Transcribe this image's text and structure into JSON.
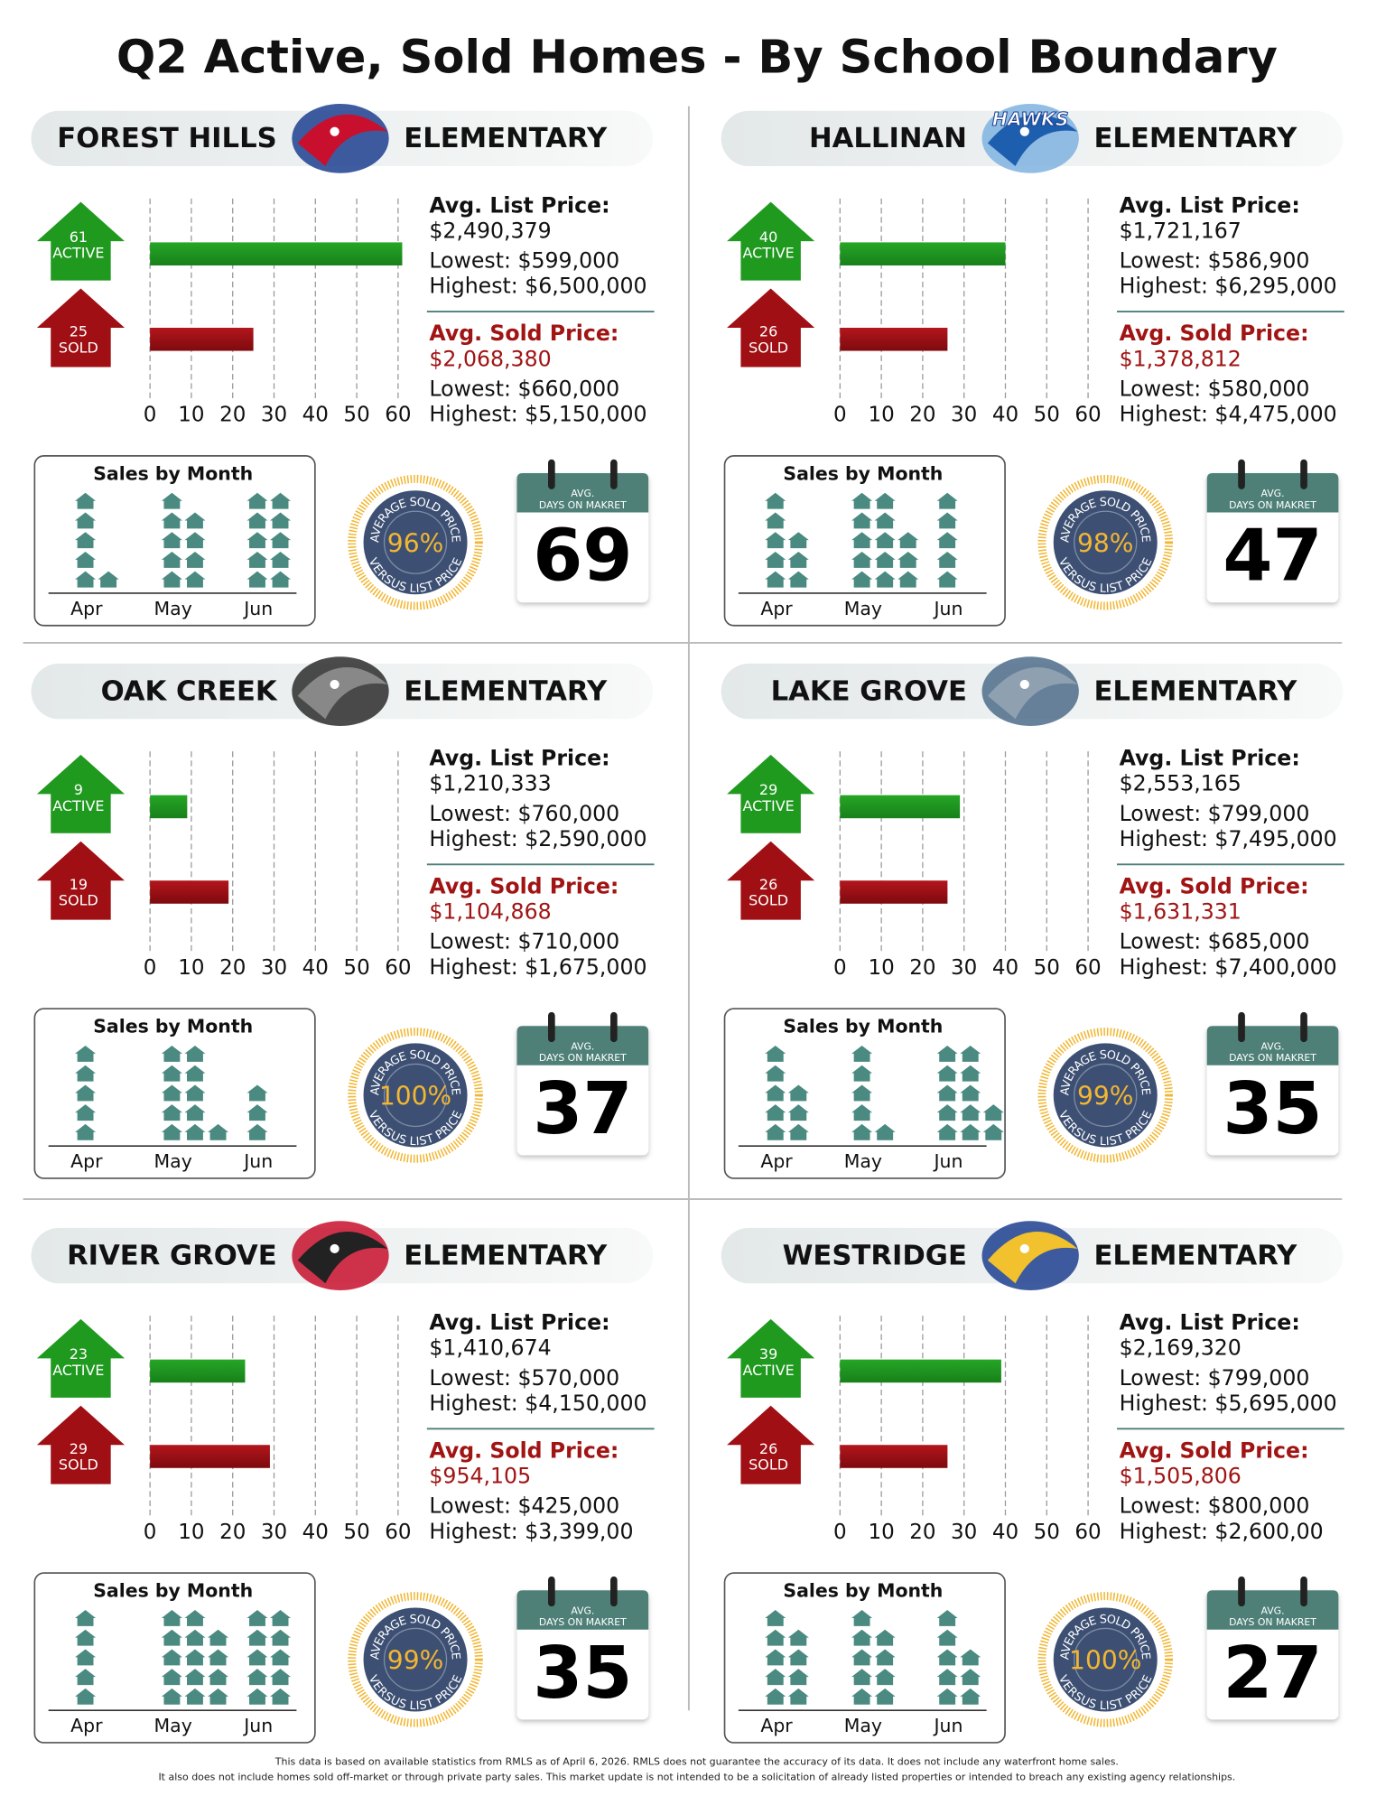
{
  "title": "Q2 Active, Sold Homes - By School Boundary",
  "schools": [
    {
      "name": "FOREST HILLS",
      "suffix": "ELEMENTARY",
      "active": 61,
      "active_label": "ACTIVE",
      "sold": 25,
      "sold_label": "SOLD",
      "xlim": [
        0,
        60
      ],
      "xticks": [
        0,
        10,
        20,
        30,
        40,
        50,
        60
      ],
      "list": {
        "heading": "Avg. List Price:",
        "avg": "$2,490,379",
        "lowest": "Lowest: $599,000",
        "highest": "Highest: $6,500,000"
      },
      "sold_prices": {
        "heading": "Avg. Sold Price:",
        "avg": "$2,068,380",
        "lowest": "Lowest: $660,000",
        "highest": "Highest: $5,150,000"
      },
      "sales": {
        "title": "Sales by Month",
        "months": [
          "Apr",
          "May",
          "Jun"
        ],
        "counts": [
          6,
          9,
          10
        ]
      },
      "badge": {
        "top": "AVERAGE SOLD PRICE",
        "bottom": "VERSUS LIST PRICE",
        "pct": "96%"
      },
      "calendar": {
        "avg": "AVG.",
        "caption": "DAYS ON MAKRET",
        "days": 69
      }
    },
    {
      "name": "HALLINAN",
      "suffix": "ELEMENTARY",
      "logo_text": "HAWKS",
      "active": 40,
      "active_label": "ACTIVE",
      "sold": 26,
      "sold_label": "SOLD",
      "xlim": [
        0,
        60
      ],
      "xticks": [
        0,
        10,
        20,
        30,
        40,
        50,
        60
      ],
      "list": {
        "heading": "Avg. List Price:",
        "avg": "$1,721,167",
        "lowest": "Lowest: $586,900",
        "highest": "Highest: $6,295,000"
      },
      "sold_prices": {
        "heading": "Avg. Sold Price:",
        "avg": "$1,378,812",
        "lowest": "Lowest: $580,000",
        "highest": "Highest: $4,475,000"
      },
      "sales": {
        "title": "Sales by Month",
        "months": [
          "Apr",
          "May",
          "Jun"
        ],
        "counts": [
          8,
          13,
          5
        ]
      },
      "badge": {
        "top": "AVERAGE SOLD PRICE",
        "bottom": "VERSUS LIST PRICE",
        "pct": "98%"
      },
      "calendar": {
        "avg": "AVG.",
        "caption": "DAYS ON MAKRET",
        "days": 47
      }
    },
    {
      "name": "OAK CREEK",
      "suffix": "ELEMENTARY",
      "active": 9,
      "active_label": "ACTIVE",
      "sold": 19,
      "sold_label": "SOLD",
      "xlim": [
        0,
        60
      ],
      "xticks": [
        0,
        10,
        20,
        30,
        40,
        50,
        60
      ],
      "list": {
        "heading": "Avg. List Price:",
        "avg": "$1,210,333",
        "lowest": "Lowest: $760,000",
        "highest": "Highest: $2,590,000"
      },
      "sold_prices": {
        "heading": "Avg. Sold Price:",
        "avg": "$1,104,868",
        "lowest": "Lowest: $710,000",
        "highest": "Highest: $1,675,000"
      },
      "sales": {
        "title": "Sales by Month",
        "months": [
          "Apr",
          "May",
          "Jun"
        ],
        "counts": [
          5,
          11,
          3
        ]
      },
      "badge": {
        "top": "AVERAGE SOLD PRICE",
        "bottom": "VERSUS LIST PRICE",
        "pct": "100%"
      },
      "calendar": {
        "avg": "AVG.",
        "caption": "DAYS ON MAKRET",
        "days": 37
      }
    },
    {
      "name": "LAKE GROVE",
      "suffix": "ELEMENTARY",
      "active": 29,
      "active_label": "ACTIVE",
      "sold": 26,
      "sold_label": "SOLD",
      "xlim": [
        0,
        60
      ],
      "xticks": [
        0,
        10,
        20,
        30,
        40,
        50,
        60
      ],
      "list": {
        "heading": "Avg. List Price:",
        "avg": "$2,553,165",
        "lowest": "Lowest: $799,000",
        "highest": "Highest: $7,495,000"
      },
      "sold_prices": {
        "heading": "Avg. Sold Price:",
        "avg": "$1,631,331",
        "lowest": "Lowest: $685,000",
        "highest": "Highest: $7,400,000"
      },
      "sales": {
        "title": "Sales by Month",
        "months": [
          "Apr",
          "May",
          "Jun"
        ],
        "counts": [
          8,
          6,
          12
        ]
      },
      "badge": {
        "top": "AVERAGE SOLD PRICE",
        "bottom": "VERSUS LIST PRICE",
        "pct": "99%"
      },
      "calendar": {
        "avg": "AVG.",
        "caption": "DAYS ON MAKRET",
        "days": 35
      }
    },
    {
      "name": "RIVER GROVE",
      "suffix": "ELEMENTARY",
      "active": 23,
      "active_label": "ACTIVE",
      "sold": 29,
      "sold_label": "SOLD",
      "xlim": [
        0,
        60
      ],
      "xticks": [
        0,
        10,
        20,
        30,
        40,
        50,
        60
      ],
      "list": {
        "heading": "Avg. List Price:",
        "avg": "$1,410,674",
        "lowest": "Lowest: $570,000",
        "highest": "Highest: $4,150,000"
      },
      "sold_prices": {
        "heading": "Avg. Sold Price:",
        "avg": "$954,105",
        "lowest": "Lowest: $425,000",
        "highest": "Highest: $3,399,00"
      },
      "sales": {
        "title": "Sales by Month",
        "months": [
          "Apr",
          "May",
          "Jun"
        ],
        "counts": [
          5,
          14,
          10
        ]
      },
      "badge": {
        "top": "AVERAGE SOLD PRICE",
        "bottom": "VERSUS LIST PRICE",
        "pct": "99%"
      },
      "calendar": {
        "avg": "AVG.",
        "caption": "DAYS ON MAKRET",
        "days": 35
      }
    },
    {
      "name": "WESTRIDGE",
      "suffix": "ELEMENTARY",
      "active": 39,
      "active_label": "ACTIVE",
      "sold": 26,
      "sold_label": "SOLD",
      "xlim": [
        0,
        60
      ],
      "xticks": [
        0,
        10,
        20,
        30,
        40,
        50,
        60
      ],
      "list": {
        "heading": "Avg. List Price:",
        "avg": "$2,169,320",
        "lowest": "Lowest: $799,000",
        "highest": "Highest: $5,695,000"
      },
      "sold_prices": {
        "heading": "Avg. Sold Price:",
        "avg": "$1,505,806",
        "lowest": "Lowest: $800,000",
        "highest": "Highest: $2,600,00"
      },
      "sales": {
        "title": "Sales by Month",
        "months": [
          "Apr",
          "May",
          "Jun"
        ],
        "counts": [
          9,
          9,
          8
        ]
      },
      "badge": {
        "top": "AVERAGE SOLD PRICE",
        "bottom": "VERSUS LIST PRICE",
        "pct": "100%"
      },
      "calendar": {
        "avg": "AVG.",
        "caption": "DAYS ON MAKRET",
        "days": 27
      }
    }
  ],
  "footer": [
    "This data is based on available statistics from RMLS as of April 6, 2026. RMLS does not guarantee the accuracy of its data. It does not include any waterfront home sales.",
    "It also does not include homes sold off-market or through private party sales. This market update is not intended to be a solicitation of already listed properties or intended to breach any existing agency relationships."
  ]
}
